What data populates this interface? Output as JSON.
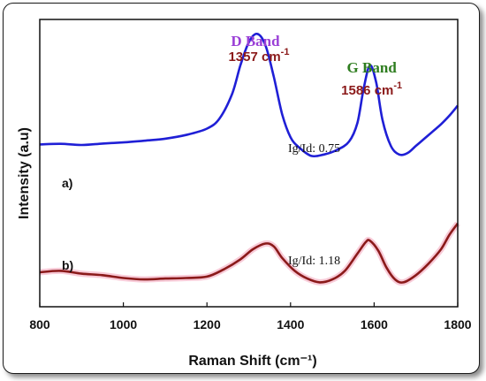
{
  "chart_data": {
    "type": "line",
    "title": "",
    "xlabel": "Raman Shift (cm⁻¹)",
    "ylabel": "Intensity (a.u)",
    "xlim": [
      800,
      1800
    ],
    "ylim": [
      0,
      100
    ],
    "xticks": [
      800,
      1000,
      1200,
      1400,
      1600,
      1800
    ],
    "grid": false,
    "legend": "none",
    "series": [
      {
        "label": "a)",
        "color": "#1f1fd6",
        "x": [
          800,
          850,
          900,
          950,
          1000,
          1050,
          1100,
          1150,
          1200,
          1230,
          1260,
          1280,
          1300,
          1320,
          1340,
          1360,
          1380,
          1400,
          1420,
          1450,
          1480,
          1510,
          1540,
          1560,
          1575,
          1590,
          1605,
          1620,
          1640,
          1660,
          1680,
          1700,
          1720,
          1740,
          1760,
          1780,
          1800
        ],
        "y": [
          56.5,
          56.7,
          56.3,
          56.8,
          57.2,
          57.8,
          58.5,
          59.8,
          62.0,
          65.5,
          74.0,
          84.0,
          92.0,
          95.0,
          91.0,
          80.0,
          67.0,
          59.0,
          55.5,
          52.5,
          53.0,
          54.5,
          57.5,
          64.0,
          76.0,
          84.0,
          78.0,
          65.0,
          56.0,
          53.0,
          53.5,
          56.0,
          58.5,
          61.0,
          63.5,
          66.5,
          70.0
        ]
      },
      {
        "label": "b)",
        "color": "#8b1a1a",
        "x": [
          800,
          850,
          900,
          950,
          1000,
          1050,
          1100,
          1150,
          1200,
          1240,
          1280,
          1310,
          1340,
          1360,
          1380,
          1410,
          1440,
          1470,
          1500,
          1530,
          1560,
          1580,
          1590,
          1610,
          1630,
          1650,
          1670,
          1700,
          1730,
          1760,
          1780,
          1800
        ],
        "y": [
          12.0,
          12.5,
          11.5,
          11.0,
          10.0,
          9.5,
          9.8,
          10.0,
          10.5,
          13.0,
          16.5,
          20.0,
          22.0,
          21.0,
          17.0,
          12.5,
          9.8,
          8.5,
          9.5,
          12.5,
          18.5,
          22.5,
          23.0,
          19.5,
          13.5,
          9.5,
          8.5,
          11.0,
          15.0,
          20.0,
          25.0,
          29.0
        ]
      }
    ],
    "annotations": {
      "d_band": {
        "name": "D Band",
        "position": "1357 cm",
        "exponent": "-1",
        "name_color": "#9a3fd6",
        "x": 1320,
        "y": 95.0
      },
      "g_band": {
        "name": "G Band",
        "position": "1586 cm",
        "exponent": "-1",
        "name_color": "#2e7d1f",
        "x": 1590,
        "y": 84.0
      },
      "ratio_a": "Ig/Id: 0.75",
      "ratio_b": "Ig/Id: 1.18"
    }
  }
}
